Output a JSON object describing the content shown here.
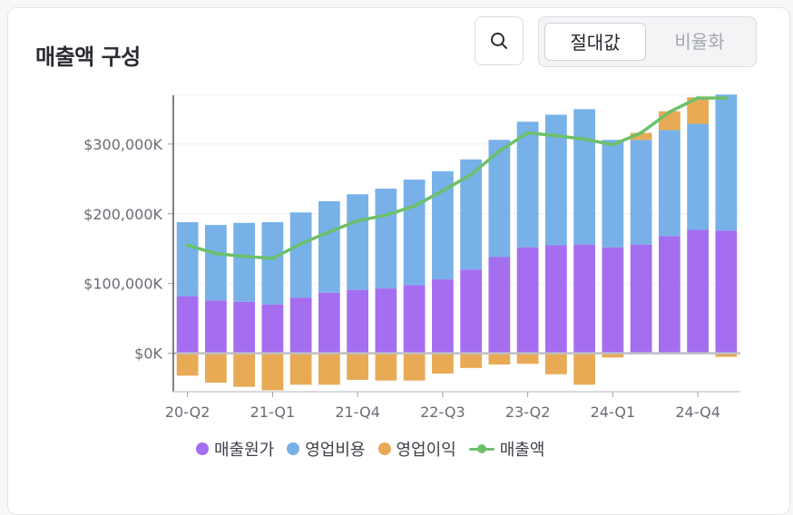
{
  "card": {
    "title": "매출액 구성"
  },
  "toolbar": {
    "search_icon": "search-icon",
    "options": [
      "절대값",
      "비율화"
    ],
    "selected": "절대값"
  },
  "colors": {
    "cogs": "#a56ef0",
    "opex": "#77b1e8",
    "op_income": "#e8aa55",
    "revenue": "#6cc06a",
    "axis": "#9c9ca4",
    "grid": "#f0f0f2",
    "zero": "#bfbfc4"
  },
  "chart_data": {
    "type": "bar",
    "stacked": true,
    "categories": [
      "20-Q2",
      "20-Q3",
      "20-Q4",
      "21-Q1",
      "21-Q2",
      "21-Q3",
      "21-Q4",
      "22-Q1",
      "22-Q2",
      "22-Q3",
      "22-Q4",
      "23-Q1",
      "23-Q2",
      "23-Q3",
      "23-Q4",
      "24-Q1",
      "24-Q2",
      "24-Q3",
      "24-Q4",
      "25-Q1"
    ],
    "xtick_labels": [
      "20-Q2",
      "21-Q1",
      "21-Q4",
      "22-Q3",
      "23-Q2",
      "24-Q1",
      "24-Q4"
    ],
    "yticks": [
      0,
      100000,
      200000,
      300000
    ],
    "ytick_labels": [
      "$0K",
      "$100,000K",
      "$200,000K",
      "$300,000K"
    ],
    "ylim": [
      -55000,
      370000
    ],
    "series": [
      {
        "name": "매출원가",
        "kind": "bar",
        "values": [
          82000,
          76000,
          74000,
          70000,
          80000,
          87000,
          91000,
          93000,
          98000,
          106000,
          120000,
          138000,
          152000,
          155000,
          156000,
          152000,
          156000,
          168000,
          177000,
          176000
        ]
      },
      {
        "name": "영업비용",
        "kind": "bar",
        "values": [
          106000,
          108000,
          113000,
          118000,
          122000,
          131000,
          137000,
          143000,
          151000,
          155000,
          158000,
          168000,
          180000,
          187000,
          194000,
          154000,
          150000,
          152000,
          152000,
          195000
        ]
      },
      {
        "name": "영업이익",
        "kind": "bar",
        "values": [
          -32000,
          -42000,
          -48000,
          -53000,
          -45000,
          -45000,
          -38000,
          -39000,
          -39000,
          -29000,
          -21000,
          -16000,
          -15000,
          -30000,
          -45000,
          -6000,
          10000,
          27000,
          38000,
          -5000
        ]
      },
      {
        "name": "매출액",
        "kind": "line",
        "values": [
          155000,
          143000,
          139000,
          136000,
          157000,
          174000,
          190000,
          198000,
          211000,
          233000,
          256000,
          290000,
          316000,
          312000,
          307000,
          299000,
          316000,
          346000,
          366000,
          366000
        ]
      }
    ]
  }
}
